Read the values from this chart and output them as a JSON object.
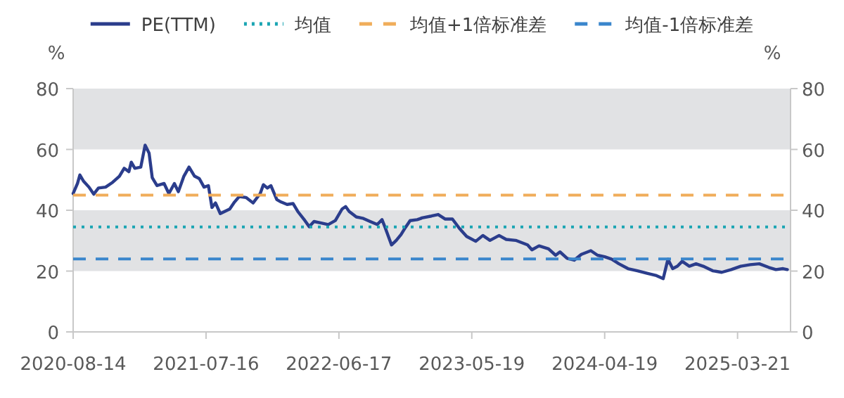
{
  "chart_data": {
    "type": "line",
    "ylabel": "%",
    "y2label": "%",
    "xlim": [
      "2020-08-14",
      "2025-08-02"
    ],
    "xticks": [
      "2020-08-14",
      "2021-07-16",
      "2022-06-17",
      "2023-05-19",
      "2024-04-19",
      "2025-03-21"
    ],
    "ylim": [
      0,
      80
    ],
    "yticks": [
      0,
      20,
      40,
      60,
      80
    ],
    "y2lim": [
      0,
      80
    ],
    "y2ticks": [
      0,
      20,
      40,
      60,
      80
    ],
    "grid": false,
    "legend": "top",
    "line_style": "solid",
    "marker": "none",
    "bands": [
      {
        "axis": "y",
        "from": 60,
        "to": 80,
        "color": "#e1e2e4"
      },
      {
        "axis": "y",
        "from": 20,
        "to": 40,
        "color": "#e1e2e4"
      }
    ],
    "ref_lines": [
      {
        "axis": "y",
        "value": 34.5,
        "label": "均值",
        "color": "#1ba5b3",
        "line_style": "dotted"
      },
      {
        "axis": "y",
        "value": 45,
        "label": "均值+1倍标准差",
        "color": "#f0ad5a",
        "line_style": "dashed"
      },
      {
        "axis": "y",
        "value": 24,
        "label": "均值-1倍标准差",
        "color": "#3a86cc",
        "line_style": "dashed"
      }
    ],
    "series": [
      {
        "name": "PE(TTM)",
        "color": "#2b3d8c",
        "x": [
          "2020-08-14",
          "2020-08-25",
          "2020-08-31",
          "2020-09-09",
          "2020-09-23",
          "2020-10-05",
          "2020-10-17",
          "2020-11-04",
          "2020-11-22",
          "2020-12-09",
          "2020-12-21",
          "2021-01-02",
          "2021-01-08",
          "2021-01-17",
          "2021-02-01",
          "2021-02-12",
          "2021-02-22",
          "2021-03-02",
          "2021-03-14",
          "2021-04-01",
          "2021-04-13",
          "2021-04-27",
          "2021-05-07",
          "2021-05-21",
          "2021-06-03",
          "2021-06-17",
          "2021-06-29",
          "2021-07-11",
          "2021-07-22",
          "2021-07-31",
          "2021-08-09",
          "2021-08-21",
          "2021-09-14",
          "2021-09-26",
          "2021-10-08",
          "2021-10-25",
          "2021-11-12",
          "2021-11-30",
          "2021-12-08",
          "2021-12-18",
          "2021-12-27",
          "2022-01-11",
          "2022-01-22",
          "2022-02-06",
          "2022-02-21",
          "2022-03-05",
          "2022-03-23",
          "2022-04-03",
          "2022-04-15",
          "2022-05-03",
          "2022-05-21",
          "2022-06-08",
          "2022-06-25",
          "2022-07-04",
          "2022-07-13",
          "2022-07-31",
          "2022-08-18",
          "2022-09-04",
          "2022-09-22",
          "2022-10-04",
          "2022-10-12",
          "2022-10-28",
          "2022-11-09",
          "2022-11-21",
          "2022-12-02",
          "2022-12-14",
          "2023-01-01",
          "2023-01-10",
          "2023-01-13",
          "2023-02-06",
          "2023-02-23",
          "2023-03-13",
          "2023-03-31",
          "2023-04-18",
          "2023-05-06",
          "2023-05-29",
          "2023-06-16",
          "2023-07-04",
          "2023-07-27",
          "2023-08-14",
          "2023-09-07",
          "2023-10-07",
          "2023-10-18",
          "2023-11-05",
          "2023-11-29",
          "2023-12-17",
          "2023-12-28",
          "2024-01-15",
          "2024-02-02",
          "2024-02-20",
          "2024-03-15",
          "2024-04-01",
          "2024-04-19",
          "2024-05-07",
          "2024-05-25",
          "2024-06-17",
          "2024-07-11",
          "2024-08-04",
          "2024-08-28",
          "2024-09-14",
          "2024-09-26",
          "2024-10-08",
          "2024-10-20",
          "2024-11-01",
          "2024-11-19",
          "2024-12-06",
          "2024-12-24",
          "2025-01-17",
          "2025-02-09",
          "2025-03-05",
          "2025-03-29",
          "2025-04-22",
          "2025-05-15",
          "2025-06-08",
          "2025-06-26",
          "2025-07-14",
          "2025-07-25"
        ],
        "values": [
          45.5,
          48.8,
          51.6,
          49.6,
          47.6,
          45.3,
          47.3,
          47.6,
          49.2,
          51.2,
          53.8,
          52.7,
          55.8,
          53.8,
          54.2,
          61.4,
          58.8,
          50.7,
          48.1,
          48.8,
          45.5,
          48.8,
          46.1,
          51.2,
          54.2,
          51.2,
          50.4,
          47.6,
          48.1,
          40.9,
          42.4,
          38.9,
          40.4,
          42.7,
          44.5,
          44.2,
          42.4,
          45.5,
          48.4,
          47.3,
          48.1,
          43.5,
          42.7,
          41.9,
          42.2,
          39.6,
          36.6,
          34.6,
          36.3,
          35.8,
          35.3,
          36.6,
          40.4,
          41.2,
          39.6,
          37.8,
          37.3,
          36.3,
          35.3,
          36.9,
          34.3,
          28.6,
          30.1,
          32.0,
          34.3,
          36.6,
          36.9,
          37.3,
          37.5,
          38.1,
          38.6,
          37.1,
          37.1,
          34.0,
          31.4,
          29.8,
          31.7,
          30.1,
          31.7,
          30.4,
          30.1,
          28.6,
          27.0,
          28.3,
          27.3,
          25.2,
          26.3,
          24.2,
          23.6,
          25.5,
          26.7,
          25.2,
          24.7,
          23.9,
          22.4,
          20.8,
          20.1,
          19.3,
          18.5,
          17.5,
          23.9,
          20.8,
          21.6,
          23.2,
          21.6,
          22.4,
          21.6,
          20.1,
          19.6,
          20.5,
          21.6,
          22.1,
          22.4,
          21.2,
          20.5,
          20.8,
          20.5
        ]
      }
    ]
  }
}
